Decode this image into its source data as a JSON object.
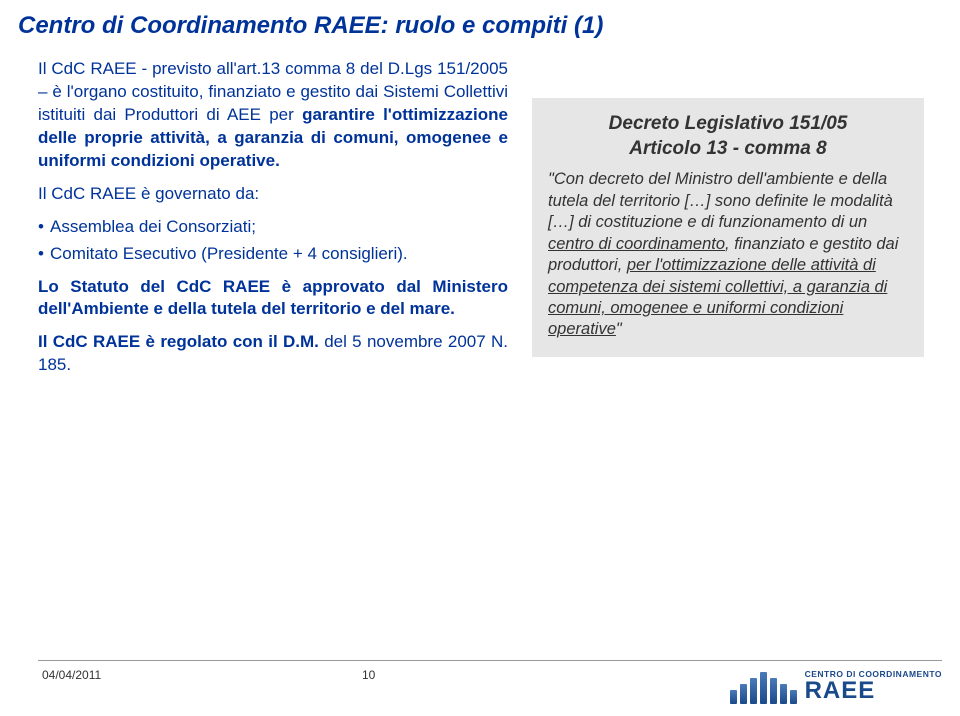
{
  "title": "Centro di Coordinamento RAEE: ruolo e compiti (1)",
  "left": {
    "p1_a": "Il CdC RAEE - previsto all'art.13 comma 8 del D.Lgs 151/2005 – è l'organo costituito, finanziato e gestito dai Sistemi Collettivi istituiti dai Produttori di AEE per ",
    "p1_b": "garantire l'ottimizzazione delle proprie attività, a garanzia di comuni, omogenee e uniformi condizioni operative.",
    "p2": "Il CdC RAEE è governato da:",
    "li1": "Assemblea dei Consorziati;",
    "li2": "Comitato Esecutivo (Presidente + 4 consiglieri).",
    "p3_a": "Lo Statuto del CdC RAEE è approvato dal Ministero dell'Ambiente ",
    "p3_b": "e della tutela del territorio e del mare.",
    "p4_a": "Il CdC RAEE è regolato con il D.M. ",
    "p4_b": "del 5 novembre 2007 N. 185."
  },
  "right": {
    "title1": "Decreto Legislativo 151/05",
    "title2": "Articolo 13 - comma 8",
    "body_pre": "\"Con decreto del Ministro dell'ambiente e della tutela del territorio […] sono definite le modalità […] di costituzione e di funzionamento di un ",
    "u1": "centro di coordinamento",
    "body_mid1": ", finanziato e gestito dai produttori, ",
    "u2": "per l'ottimizzazione delle attività di competenza dei sistemi collettivi, a garanzia di comuni, omogenee e uniformi condizioni operative",
    "body_end": "\""
  },
  "footer": {
    "date": "04/04/2011",
    "page": "10"
  },
  "logo": {
    "small": "CENTRO DI COORDINAMENTO",
    "big": "RAEE",
    "bar_heights": [
      14,
      20,
      26,
      32,
      26,
      20,
      14
    ],
    "bar_color_top": "#4a7ab8",
    "bar_color_bottom": "#1a4a8a"
  },
  "colors": {
    "title": "#003399",
    "body": "#003399",
    "box_bg": "#e6e6e6",
    "box_text": "#333333"
  }
}
